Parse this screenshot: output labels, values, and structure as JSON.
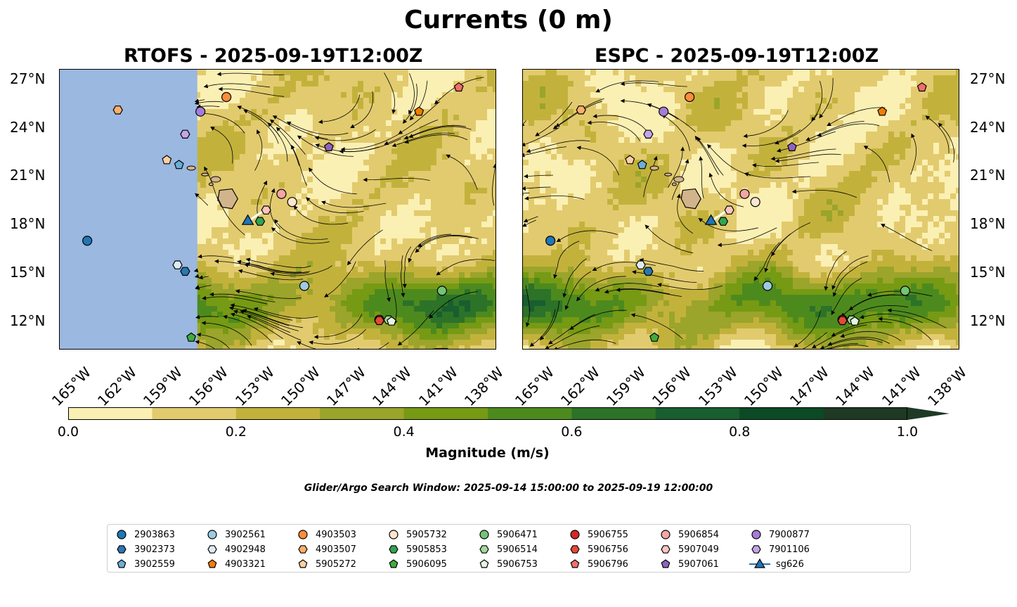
{
  "title": "Currents (0 m)",
  "panels": [
    {
      "id": "rtofs",
      "subtitle": "RTOFS - 2025-09-19T12:00Z"
    },
    {
      "id": "espc",
      "subtitle": "ESPC - 2025-09-19T12:00Z"
    }
  ],
  "map": {
    "lon_range": [
      -166.5,
      -138
    ],
    "lat_range": [
      10.3,
      27.6
    ],
    "lat_ticks": [
      "27°N",
      "24°N",
      "21°N",
      "18°N",
      "15°N",
      "12°N"
    ],
    "lat_tick_values": [
      27,
      24,
      21,
      18,
      15,
      12
    ],
    "lon_ticks": [
      "165°W",
      "162°W",
      "159°W",
      "156°W",
      "153°W",
      "150°W",
      "147°W",
      "144°W",
      "141°W",
      "138°W"
    ],
    "lon_tick_values": [
      -165,
      -162,
      -159,
      -156,
      -153,
      -150,
      -147,
      -144,
      -141,
      -138
    ],
    "land_color": "#d2b48c",
    "nodata_color": "#9ab8e0",
    "rtofs_nodata_east_edge_lon": -157.5
  },
  "colorbar": {
    "label": "Magnitude (m/s)",
    "ticks": [
      "0.0",
      "0.2",
      "0.4",
      "0.6",
      "0.8",
      "1.0"
    ],
    "tick_values": [
      0,
      0.2,
      0.4,
      0.6,
      0.8,
      1.0
    ],
    "levels": [
      0,
      0.1,
      0.2,
      0.3,
      0.4,
      0.5,
      0.6,
      0.7,
      0.8,
      0.9,
      1.0
    ],
    "colors": [
      "#fbf0b3",
      "#e2cb6e",
      "#c2b23c",
      "#9ba42b",
      "#769a14",
      "#4d8a1e",
      "#2c7228",
      "#195e2e",
      "#0c4a25",
      "#1e3a24"
    ],
    "extend": "max"
  },
  "search_window": "Glider/Argo Search Window: 2025-09-14 15:00:00 to 2025-09-19 12:00:00",
  "floats": [
    {
      "id": "2903863",
      "marker": "circle",
      "color": "#1f77b4",
      "lon": -164.7,
      "lat": 17.0
    },
    {
      "id": "3902373",
      "marker": "hexagon",
      "color": "#2a77b4",
      "lon": -158.3,
      "lat": 15.1
    },
    {
      "id": "3902559",
      "marker": "pentagon",
      "color": "#6baed6",
      "lon": -158.7,
      "lat": 21.7
    },
    {
      "id": "3902561",
      "marker": "circle",
      "color": "#9ecae1",
      "lon": -150.5,
      "lat": 14.2
    },
    {
      "id": "4902948",
      "marker": "hexagon",
      "color": "#deebf7",
      "lon": -158.8,
      "lat": 15.5
    },
    {
      "id": "4903321",
      "marker": "pentagon",
      "color": "#f57c00",
      "lon": -143.0,
      "lat": 25.0
    },
    {
      "id": "4903503",
      "marker": "circle",
      "color": "#fd8d3c",
      "lon": -155.6,
      "lat": 25.9
    },
    {
      "id": "4903507",
      "marker": "hexagon",
      "color": "#fdae6b",
      "lon": -162.7,
      "lat": 25.1
    },
    {
      "id": "5905272",
      "marker": "pentagon",
      "color": "#fdd0a2",
      "lon": -159.5,
      "lat": 22.0
    },
    {
      "id": "5905732",
      "marker": "circle",
      "color": "#fee6ce",
      "lon": -151.3,
      "lat": 19.4
    },
    {
      "id": "5905853",
      "marker": "hexagon",
      "color": "#31a354",
      "lon": -153.4,
      "lat": 18.2
    },
    {
      "id": "5906095",
      "marker": "pentagon",
      "color": "#41ab3d",
      "lon": -157.9,
      "lat": 11.0
    },
    {
      "id": "5906471",
      "marker": "circle",
      "color": "#74c476",
      "lon": -141.5,
      "lat": 13.9
    },
    {
      "id": "5906514",
      "marker": "hexagon",
      "color": "#a1d99b",
      "lon": -145.0,
      "lat": 12.1
    },
    {
      "id": "5906753",
      "marker": "pentagon",
      "color": "#e5f5e0",
      "lon": -144.8,
      "lat": 12.0
    },
    {
      "id": "5906755",
      "marker": "circle",
      "color": "#d62728",
      "lon": -145.6,
      "lat": 12.1
    },
    {
      "id": "5906756",
      "marker": "hexagon",
      "color": "#e34a33",
      "lon": -145.6,
      "lat": 12.05
    },
    {
      "id": "5906796",
      "marker": "pentagon",
      "color": "#f46d6d",
      "lon": -140.4,
      "lat": 26.5
    },
    {
      "id": "5906854",
      "marker": "circle",
      "color": "#f4a5a5",
      "lon": -152.0,
      "lat": 19.9
    },
    {
      "id": "5907049",
      "marker": "hexagon",
      "color": "#fcc5c0",
      "lon": -153.0,
      "lat": 18.9
    },
    {
      "id": "5907061",
      "marker": "pentagon",
      "color": "#8f63bf",
      "lon": -148.9,
      "lat": 22.8
    },
    {
      "id": "7900877",
      "marker": "circle",
      "color": "#a57cd6",
      "lon": -157.3,
      "lat": 25.0
    },
    {
      "id": "7901106",
      "marker": "hexagon",
      "color": "#c5a5e8",
      "lon": -158.3,
      "lat": 23.6
    },
    {
      "id": "sg626",
      "marker": "triangle",
      "color": "#1f77b4",
      "lon": -154.2,
      "lat": 18.2
    }
  ],
  "glider_track": [
    [
      -154.2,
      18.2
    ],
    [
      -153.1,
      18.9
    ]
  ],
  "legend_title": ""
}
